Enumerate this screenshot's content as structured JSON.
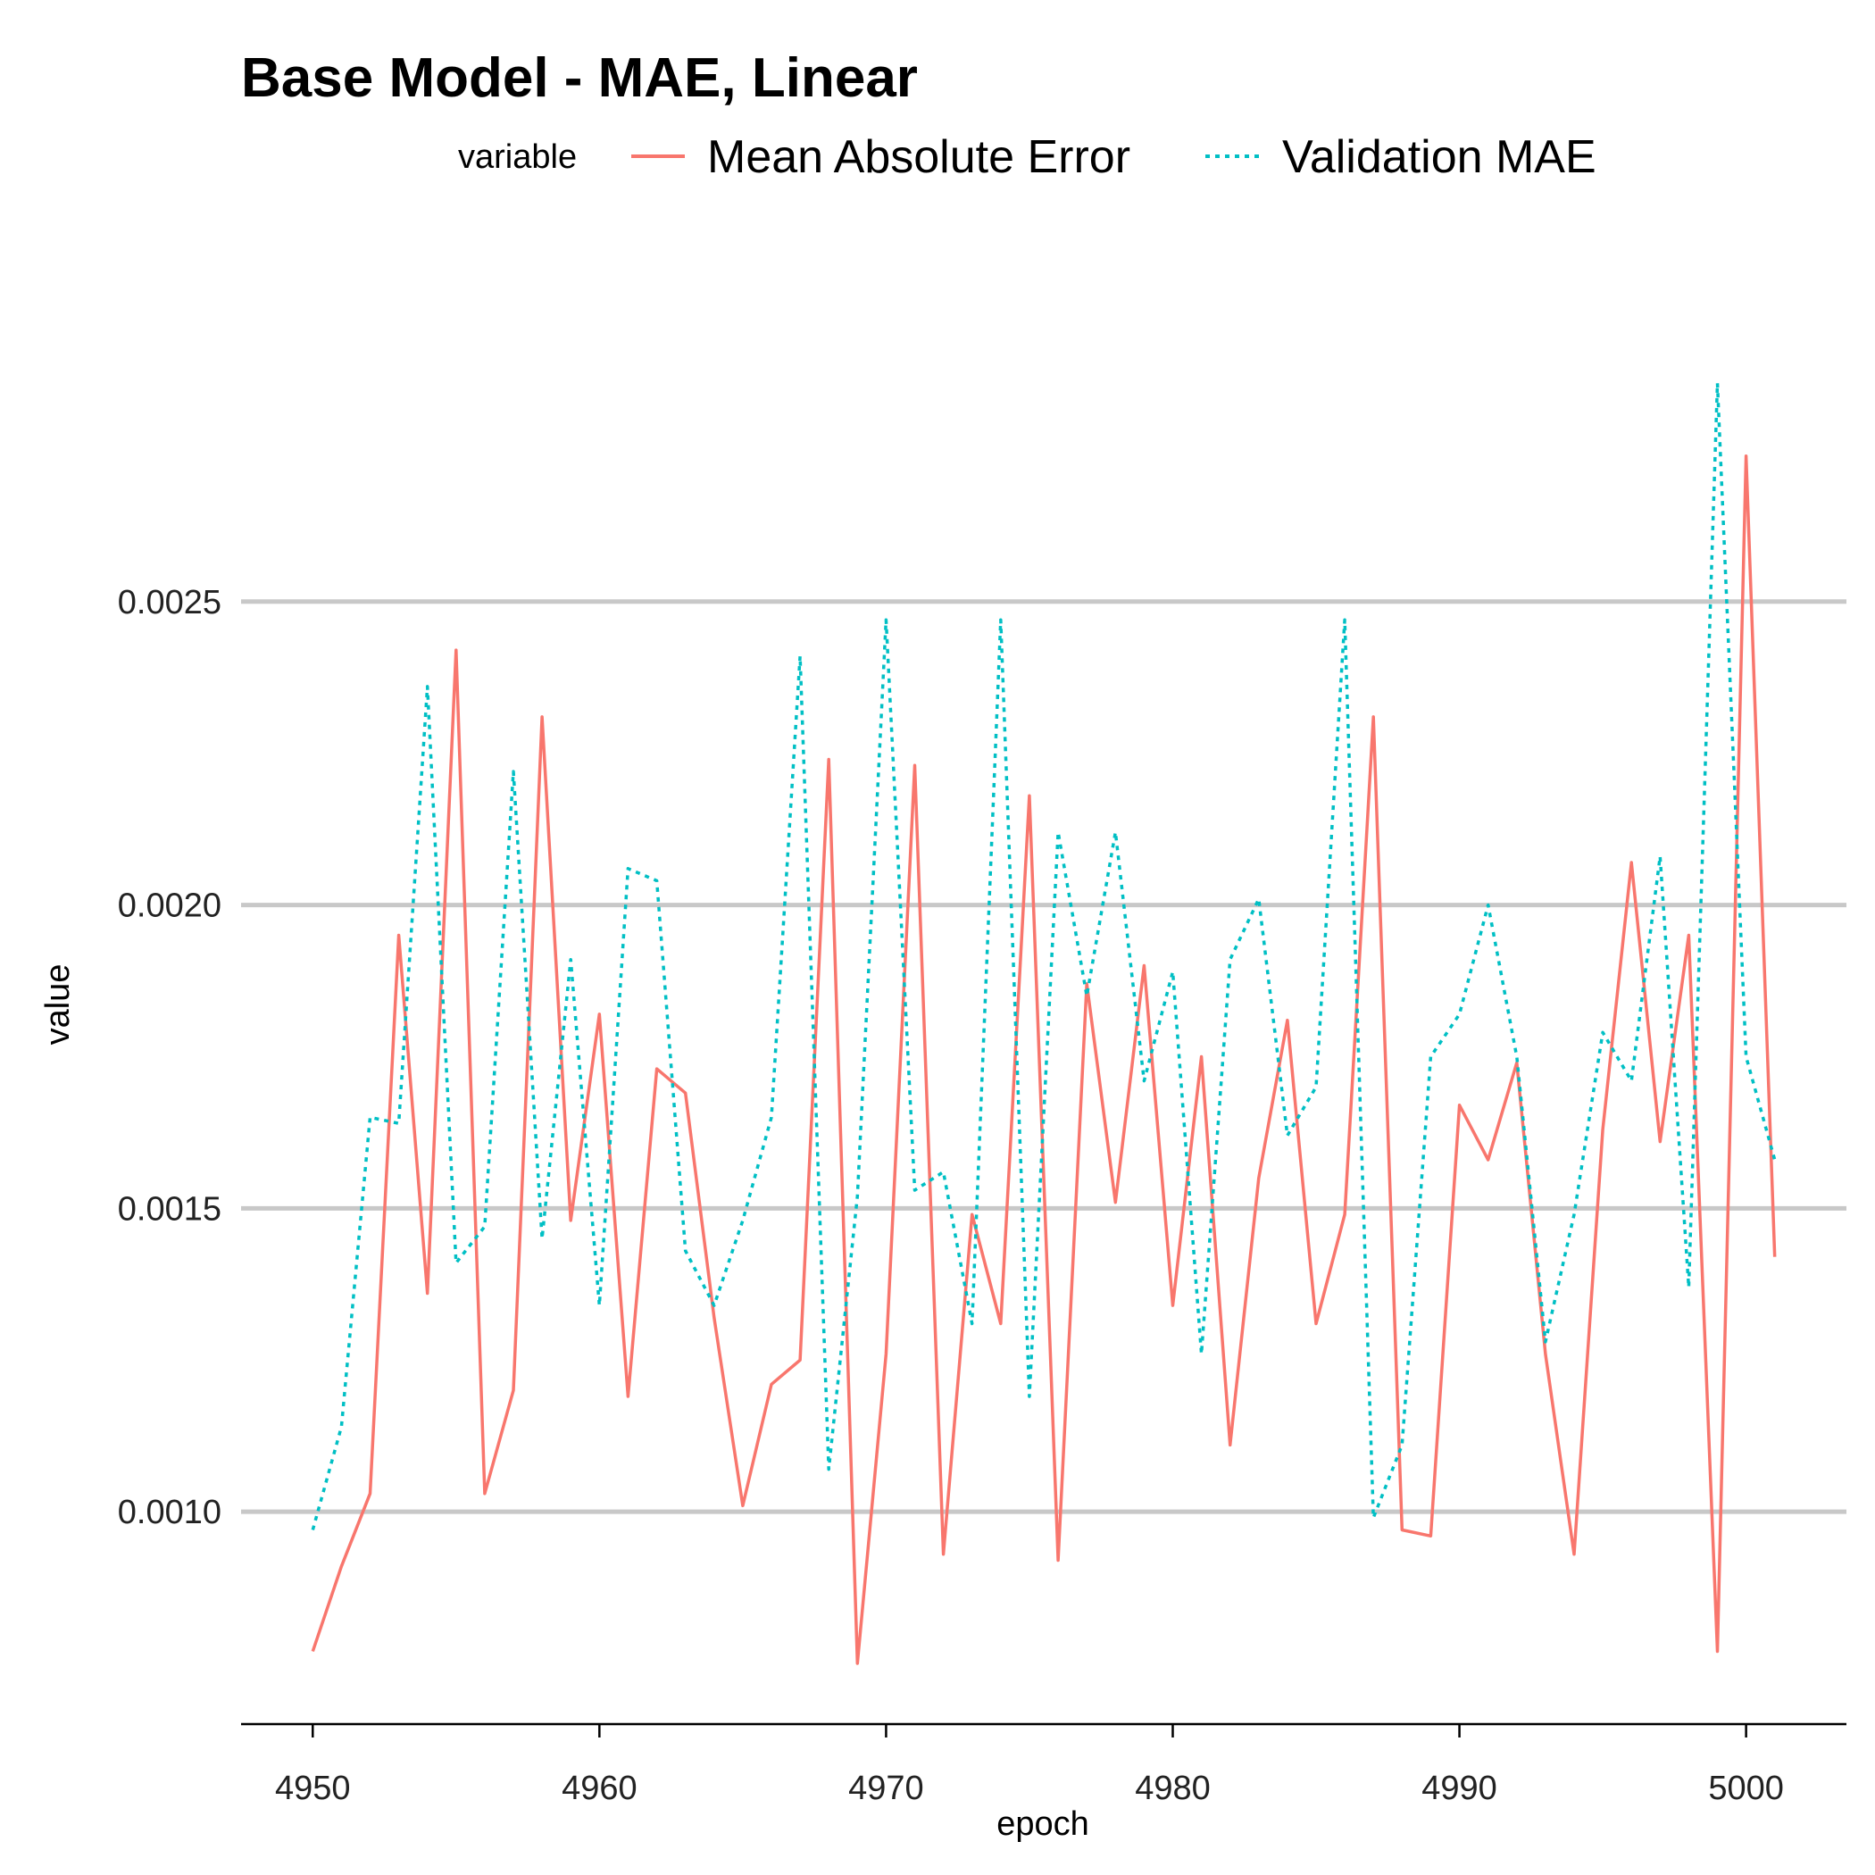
{
  "chart_data": {
    "type": "line",
    "title": "Base Model - MAE, Linear",
    "xlabel": "epoch",
    "ylabel": "value",
    "xlim": [
      4947.5,
      5003.5
    ],
    "ylim": [
      0.00065,
      0.00305
    ],
    "x_ticks": [
      4950,
      4960,
      4970,
      4980,
      4990,
      5000
    ],
    "x_tick_labels": [
      "4950",
      "4960",
      "4970",
      "4980",
      "4990",
      "5000"
    ],
    "y_ticks": [
      0.001,
      0.0015,
      0.002,
      0.0025
    ],
    "y_tick_labels": [
      "0.0010",
      "0.0015",
      "0.0020",
      "0.0025"
    ],
    "grid": "horizontal-major",
    "legend": {
      "title": "variable",
      "placement": "top"
    },
    "x": [
      4950,
      4951,
      4952,
      4953,
      4954,
      4955,
      4956,
      4957,
      4958,
      4959,
      4960,
      4961,
      4962,
      4963,
      4964,
      4965,
      4966,
      4967,
      4968,
      4969,
      4970,
      4971,
      4972,
      4973,
      4974,
      4975,
      4976,
      4977,
      4978,
      4979,
      4980,
      4981,
      4982,
      4983,
      4984,
      4985,
      4986,
      4987,
      4988,
      4989,
      4990,
      4991,
      4992,
      4993,
      4994,
      4995,
      4996,
      4997,
      4998,
      4999,
      5000,
      5001
    ],
    "series": [
      {
        "name": "Mean Absolute Error",
        "color": "#f8766d",
        "dash": "solid",
        "values": [
          0.00077,
          0.00091,
          0.00103,
          0.00195,
          0.00136,
          0.00242,
          0.00103,
          0.0012,
          0.00231,
          0.00148,
          0.00182,
          0.00119,
          0.00173,
          0.00169,
          0.00132,
          0.00101,
          0.00121,
          0.00125,
          0.00224,
          0.00075,
          0.00126,
          0.00223,
          0.00093,
          0.00149,
          0.00131,
          0.00218,
          0.00092,
          0.00187,
          0.00151,
          0.0019,
          0.00134,
          0.00175,
          0.00111,
          0.00155,
          0.00181,
          0.00131,
          0.00149,
          0.00231,
          0.00097,
          0.00096,
          0.00167,
          0.00158,
          0.00174,
          0.00126,
          0.00093,
          0.00163,
          0.00207,
          0.00161,
          0.00195,
          0.00077,
          0.00274,
          0.00142
        ]
      },
      {
        "name": "Validation MAE",
        "color": "#00bfc4",
        "dash": "dotted",
        "values": [
          0.00097,
          0.00114,
          0.00165,
          0.00164,
          0.00236,
          0.00141,
          0.00147,
          0.00222,
          0.00145,
          0.00191,
          0.00134,
          0.00206,
          0.00204,
          0.00143,
          0.00134,
          0.00148,
          0.00165,
          0.00241,
          0.00107,
          0.00152,
          0.00247,
          0.00153,
          0.00156,
          0.00131,
          0.00247,
          0.00119,
          0.00212,
          0.00185,
          0.00212,
          0.00171,
          0.00189,
          0.00126,
          0.00191,
          0.00201,
          0.00162,
          0.0017,
          0.00247,
          0.00099,
          0.00111,
          0.00175,
          0.00182,
          0.002,
          0.00175,
          0.00128,
          0.00149,
          0.00179,
          0.00171,
          0.00208,
          0.00137,
          0.00286,
          0.00175,
          0.00158
        ]
      }
    ]
  }
}
